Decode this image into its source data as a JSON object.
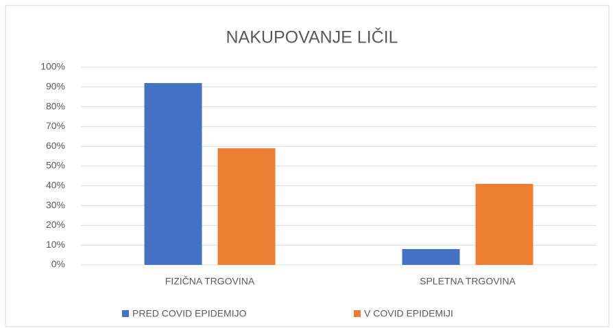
{
  "chart_data": {
    "type": "bar",
    "title": "NAKUPOVANJE LIČIL",
    "categories": [
      "FIZIČNA TRGOVINA",
      "SPLETNA TRGOVINA"
    ],
    "series": [
      {
        "name": "PRED COVID EPIDEMIJO",
        "color": "#4472c4",
        "values": [
          92,
          8
        ]
      },
      {
        "name": "V COVID EPIDEMIJI",
        "color": "#ed7d31",
        "values": [
          59,
          41
        ]
      }
    ],
    "ylim": [
      0,
      100
    ],
    "yticks": [
      {
        "value": 0,
        "label": "0%"
      },
      {
        "value": 10,
        "label": "10%"
      },
      {
        "value": 20,
        "label": "20%"
      },
      {
        "value": 30,
        "label": "30%"
      },
      {
        "value": 40,
        "label": "40%"
      },
      {
        "value": 50,
        "label": "50%"
      },
      {
        "value": 60,
        "label": "60%"
      },
      {
        "value": 70,
        "label": "70%"
      },
      {
        "value": 80,
        "label": "80%"
      },
      {
        "value": 90,
        "label": "90%"
      },
      {
        "value": 100,
        "label": "100%"
      }
    ],
    "grid": true,
    "legend": "bottom"
  }
}
